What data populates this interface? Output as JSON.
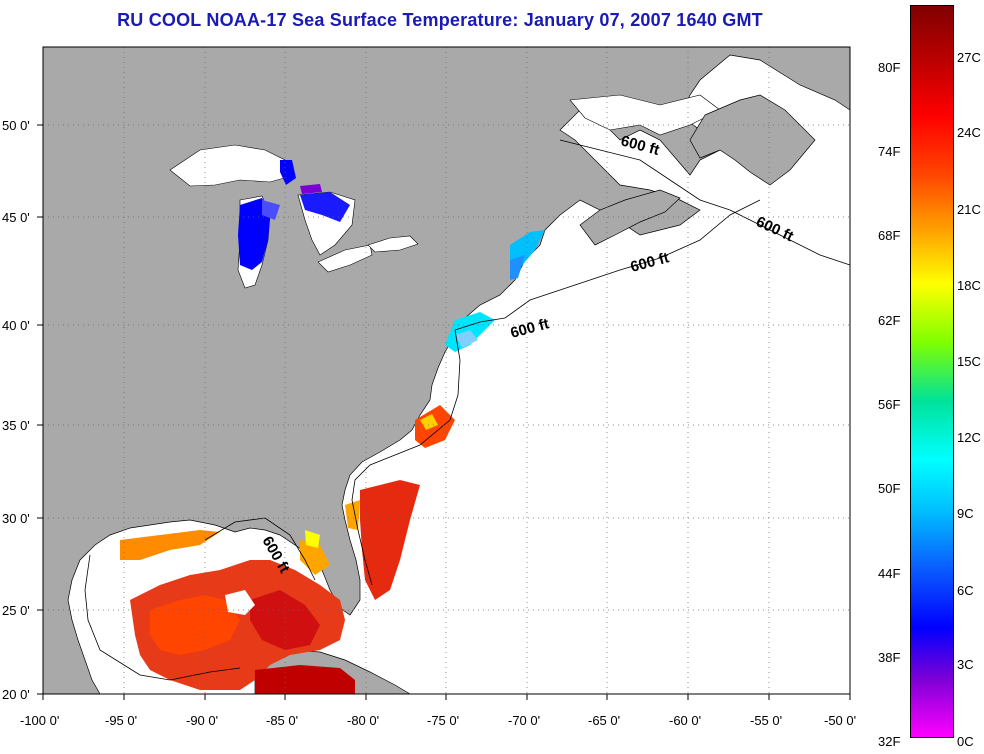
{
  "title": "RU COOL  NOAA-17  Sea Surface Temperature:  January 07, 2007 1640 GMT",
  "latitude_labels": [
    "50 0'",
    "45 0'",
    "40 0'",
    "35 0'",
    "30 0'",
    "25 0'",
    "20 0'"
  ],
  "longitude_labels": [
    "-100 0'",
    "-95 0'",
    "-90 0'",
    "-85 0'",
    "-80 0'",
    "-75 0'",
    "-70 0'",
    "-65 0'",
    "-60 0'",
    "-55 0'",
    "-50 0'"
  ],
  "contour_labels": [
    "600 ft",
    "600 ft",
    "600 ft",
    "600 ft",
    "600 ft"
  ],
  "colorbar": {
    "fahrenheit_labels": [
      "80F",
      "74F",
      "68F",
      "62F",
      "56F",
      "50F",
      "44F",
      "38F",
      "32F"
    ],
    "celsius_labels": [
      "27C",
      "24C",
      "21C",
      "18C",
      "15C",
      "12C",
      "9C",
      "6C",
      "3C",
      "0C"
    ],
    "colors": [
      "#ff00ff",
      "#7b00d6",
      "#0000ff",
      "#0a5cff",
      "#00bfff",
      "#00ffff",
      "#00e29a",
      "#7fff00",
      "#ffff00",
      "#ffa500",
      "#ff4500",
      "#ff0000",
      "#c00000",
      "#800000"
    ]
  },
  "colors": {
    "land": "#a9a9a9",
    "no_data": "#ffffff",
    "title": "#1a1ab4"
  }
}
